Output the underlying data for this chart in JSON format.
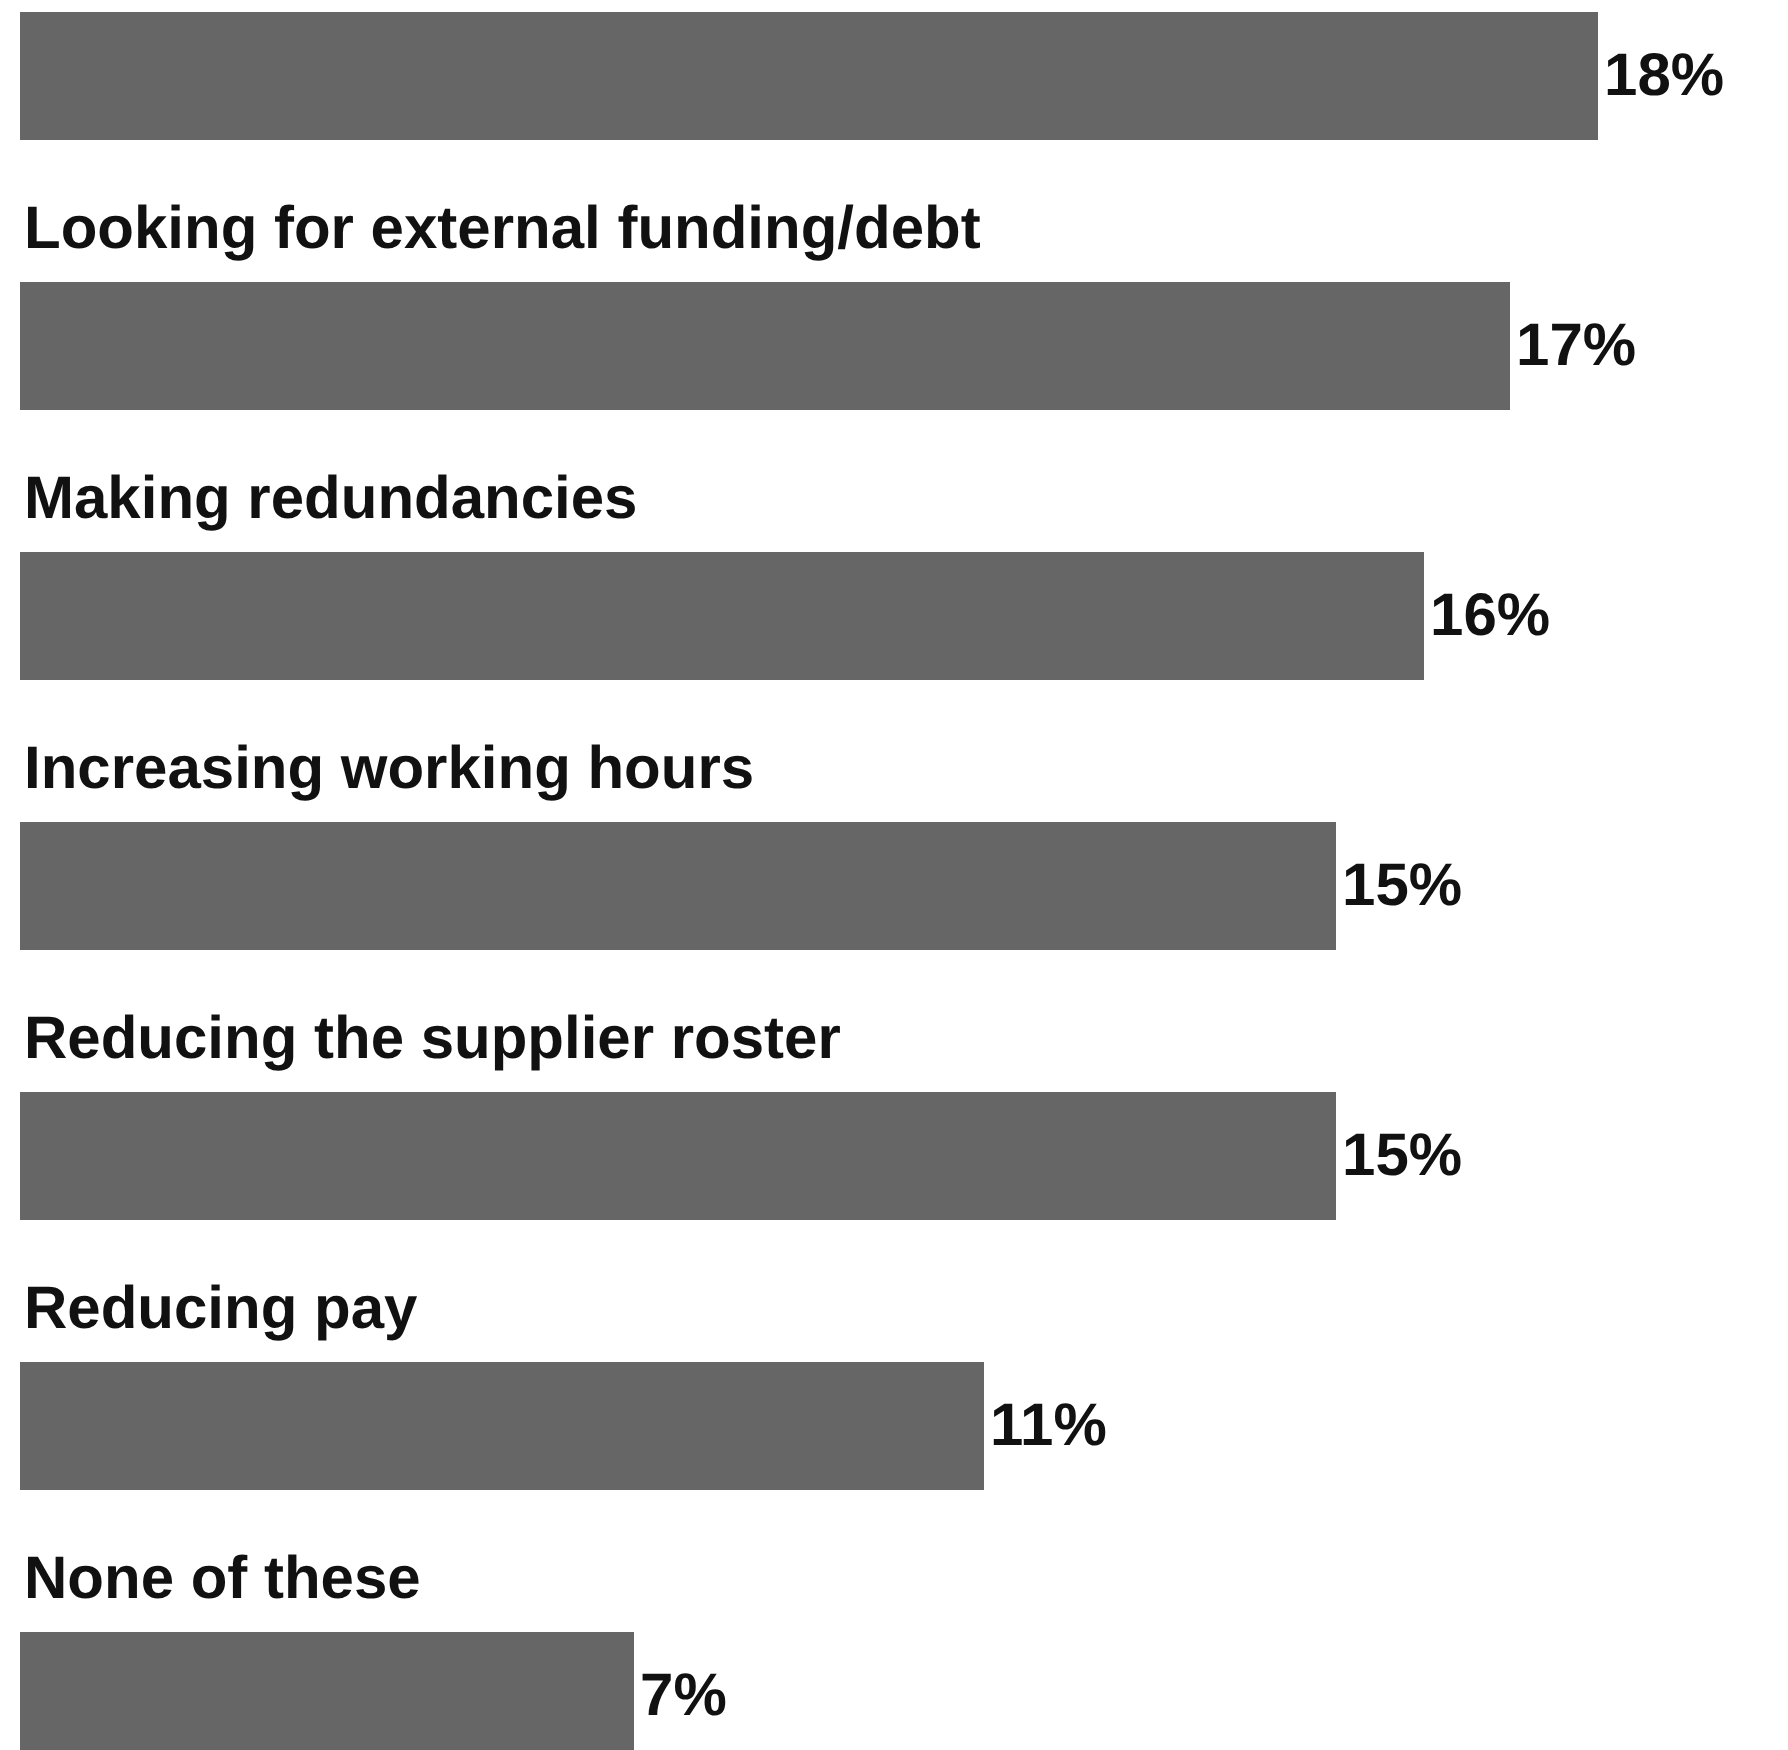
{
  "chart_data": {
    "type": "bar",
    "orientation": "horizontal",
    "categories": [
      null,
      "Looking for external funding/debt",
      "Making redundancies",
      "Increasing working hours",
      "Reducing the supplier roster",
      "Reducing pay",
      "None of these"
    ],
    "values": [
      18,
      17,
      16,
      15,
      15,
      11,
      7
    ],
    "value_labels": [
      "18%",
      "17%",
      "16%",
      "15%",
      "15%",
      "11%",
      "7%"
    ],
    "color": "#666666"
  }
}
